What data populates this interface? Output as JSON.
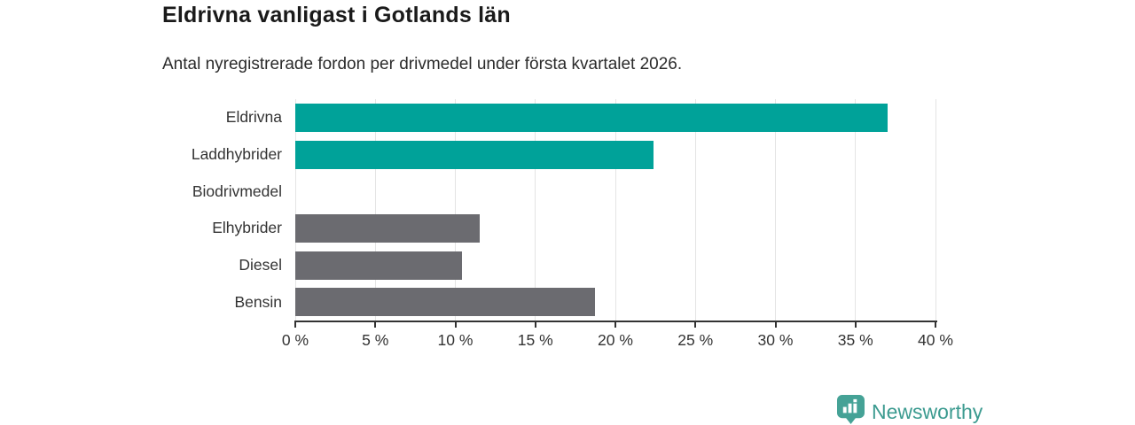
{
  "chart_data": {
    "type": "bar",
    "orientation": "horizontal",
    "title": "Eldrivna vanligast i Gotlands län",
    "subtitle": "Antal nyregistrerade fordon per drivmedel under första kvartalet 2026.",
    "categories": [
      "Eldrivna",
      "Laddhybrider",
      "Biodrivmedel",
      "Elhybrider",
      "Diesel",
      "Bensin"
    ],
    "values": [
      37.0,
      22.4,
      0,
      11.5,
      10.4,
      18.7
    ],
    "unit": "%",
    "xlim": [
      0,
      40
    ],
    "x_ticks": [
      0,
      5,
      10,
      15,
      20,
      25,
      30,
      35,
      40
    ],
    "x_tick_suffix": " %",
    "grid": true,
    "legend": "none",
    "highlight_color": "#00a299",
    "base_color": "#6b6b70",
    "bar_colors": [
      "#00a299",
      "#00a299",
      "#6b6b70",
      "#6b6b70",
      "#6b6b70",
      "#6b6b70"
    ],
    "gridline_color": "#e4e4e4",
    "axis_color": "#333333"
  },
  "footer": {
    "logo_text": "Newsworthy",
    "logo_color": "#3c9b90",
    "logo_icon": "newsworthy-pin-barchart-icon",
    "logo_icon_color": "#45a296"
  }
}
